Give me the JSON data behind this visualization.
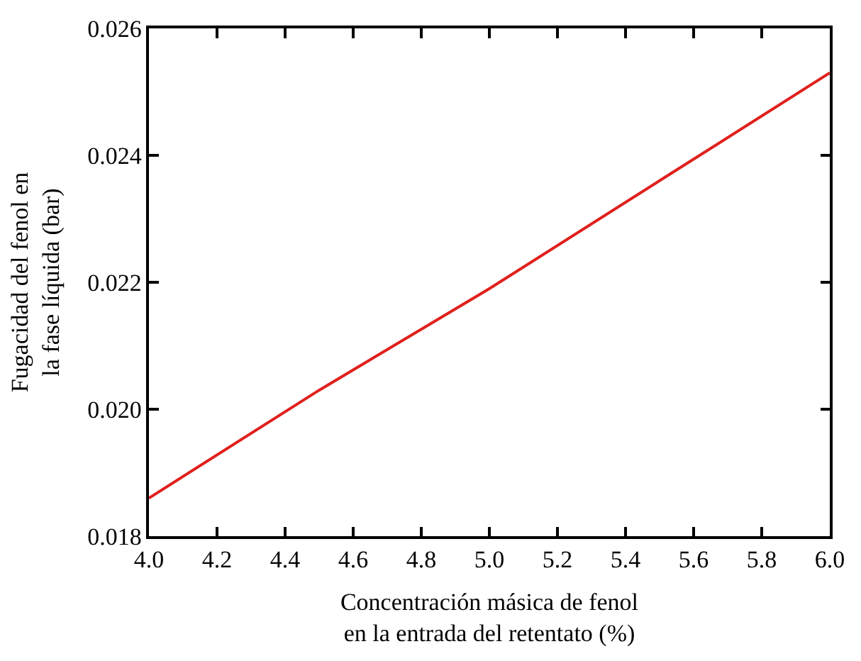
{
  "chart_data": {
    "type": "line",
    "xlabel": "Concentración másica de fenol\nen la entrada del retentato (%)",
    "ylabel": "Fugacidad del fenol en\nla fase líquida (bar)",
    "x": [
      4.0,
      4.5,
      5.0,
      5.5,
      6.0
    ],
    "series": [
      {
        "color": "#e0201c",
        "values": [
          0.0186,
          0.0203,
          0.0219,
          0.0236,
          0.0253
        ]
      }
    ],
    "xlim": [
      4.0,
      6.0
    ],
    "ylim": [
      0.018,
      0.026
    ],
    "xticks": [
      {
        "value": 4.0,
        "label": "4.0"
      },
      4.2,
      4.4,
      4.6,
      4.8,
      {
        "value": 5.0,
        "label": "5.0"
      },
      5.2,
      5.4,
      5.6,
      5.8,
      {
        "value": 6.0,
        "label": "6.0"
      }
    ],
    "yticks": [
      0.018,
      {
        "value": 0.02,
        "label": "0.020"
      },
      0.022,
      0.024,
      0.026
    ],
    "marker": "none",
    "line_style": "solid"
  }
}
